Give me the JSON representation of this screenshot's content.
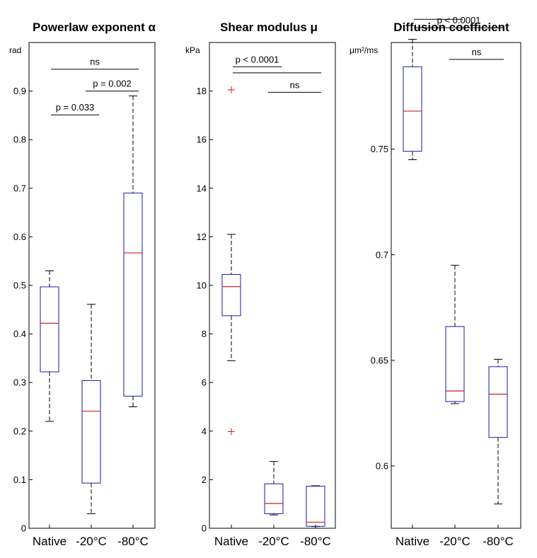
{
  "colors": {
    "box": "#1a1aa6",
    "median": "#cc2222",
    "whisker": "#000000",
    "outlier": "#cc2222",
    "axis": "#000000"
  },
  "chart_data": [
    {
      "type": "box",
      "title": "Powerlaw exponent α",
      "ylabel": "rad",
      "categories": [
        "Native",
        "-20°C",
        "-80°C"
      ],
      "ylim": [
        0,
        1.0
      ],
      "yticks": [
        0,
        0.1,
        0.2,
        0.3,
        0.4,
        0.5,
        0.6,
        0.7,
        0.8,
        0.9
      ],
      "ytick_labels": [
        "0",
        "0.1",
        "0.2",
        "0.3",
        "0.4",
        "0.5",
        "0.6",
        "0.7",
        "0.8",
        "0.9"
      ],
      "boxes": [
        {
          "min": 0.22,
          "q1": 0.322,
          "median": 0.422,
          "q3": 0.497,
          "max": 0.53,
          "outliers": []
        },
        {
          "min": 0.03,
          "q1": 0.093,
          "median": 0.241,
          "q3": 0.304,
          "max": 0.461,
          "outliers": []
        },
        {
          "min": 0.25,
          "q1": 0.272,
          "median": 0.567,
          "q3": 0.69,
          "max": 0.89,
          "outliers": []
        }
      ],
      "annotations": [
        {
          "text": "ns",
          "from": 0,
          "to": 2,
          "y": 0.945
        },
        {
          "text": "p = 0.002",
          "from": 1,
          "to": 2,
          "y": 0.9
        },
        {
          "text": "p = 0.033",
          "from": 0,
          "to": 1,
          "y": 0.851
        }
      ]
    },
    {
      "type": "box",
      "title": "Shear modulus μ",
      "ylabel": "kPa",
      "categories": [
        "Native",
        "-20°C",
        "-80°C"
      ],
      "ylim": [
        0,
        20
      ],
      "yticks": [
        0,
        2,
        4,
        6,
        8,
        10,
        12,
        14,
        16,
        18
      ],
      "ytick_labels": [
        "0",
        "2",
        "4",
        "6",
        "8",
        "10",
        "12",
        "14",
        "16",
        "18"
      ],
      "boxes": [
        {
          "min": 6.9,
          "q1": 8.75,
          "median": 9.95,
          "q3": 10.45,
          "max": 12.1,
          "outliers": [
            18.05,
            3.98
          ]
        },
        {
          "min": 0.55,
          "q1": 0.6,
          "median": 1.02,
          "q3": 1.83,
          "max": 2.75,
          "outliers": []
        },
        {
          "min": 0.07,
          "q1": 0.08,
          "median": 0.25,
          "q3": 1.73,
          "max": 1.75,
          "outliers": []
        }
      ],
      "annotations": [
        {
          "text": "p < 0.0001",
          "from": 0,
          "to": 1,
          "y": 19.0
        },
        {
          "text": "",
          "from": 0,
          "to": 2,
          "y": 18.75
        },
        {
          "text": "ns",
          "from": 1,
          "to": 2,
          "y": 17.95
        }
      ]
    },
    {
      "type": "box",
      "title": "Diffusion coefficient",
      "ylabel": "μm²/ms",
      "categories": [
        "Native",
        "-20°C",
        "-80°C"
      ],
      "ylim": [
        0.5705,
        0.8005
      ],
      "yticks": [
        0.6,
        0.65,
        0.7,
        0.75
      ],
      "ytick_labels": [
        "0.6",
        "0.65",
        "0.7",
        "0.75"
      ],
      "boxes": [
        {
          "min": 0.745,
          "q1": 0.749,
          "median": 0.768,
          "q3": 0.789,
          "max": 0.802,
          "outliers": []
        },
        {
          "min": 0.6295,
          "q1": 0.6305,
          "median": 0.6355,
          "q3": 0.666,
          "max": 0.695,
          "outliers": []
        },
        {
          "min": 0.582,
          "q1": 0.6135,
          "median": 0.634,
          "q3": 0.647,
          "max": 0.6505,
          "outliers": []
        }
      ],
      "annotations": [
        {
          "text": "",
          "from": 0,
          "to": 1,
          "y": 0.8115
        },
        {
          "text": "p < 0.0001",
          "from": 0,
          "to": 2,
          "y": 0.8075
        },
        {
          "text": "ns",
          "from": 1,
          "to": 2,
          "y": 0.7925
        }
      ]
    }
  ]
}
